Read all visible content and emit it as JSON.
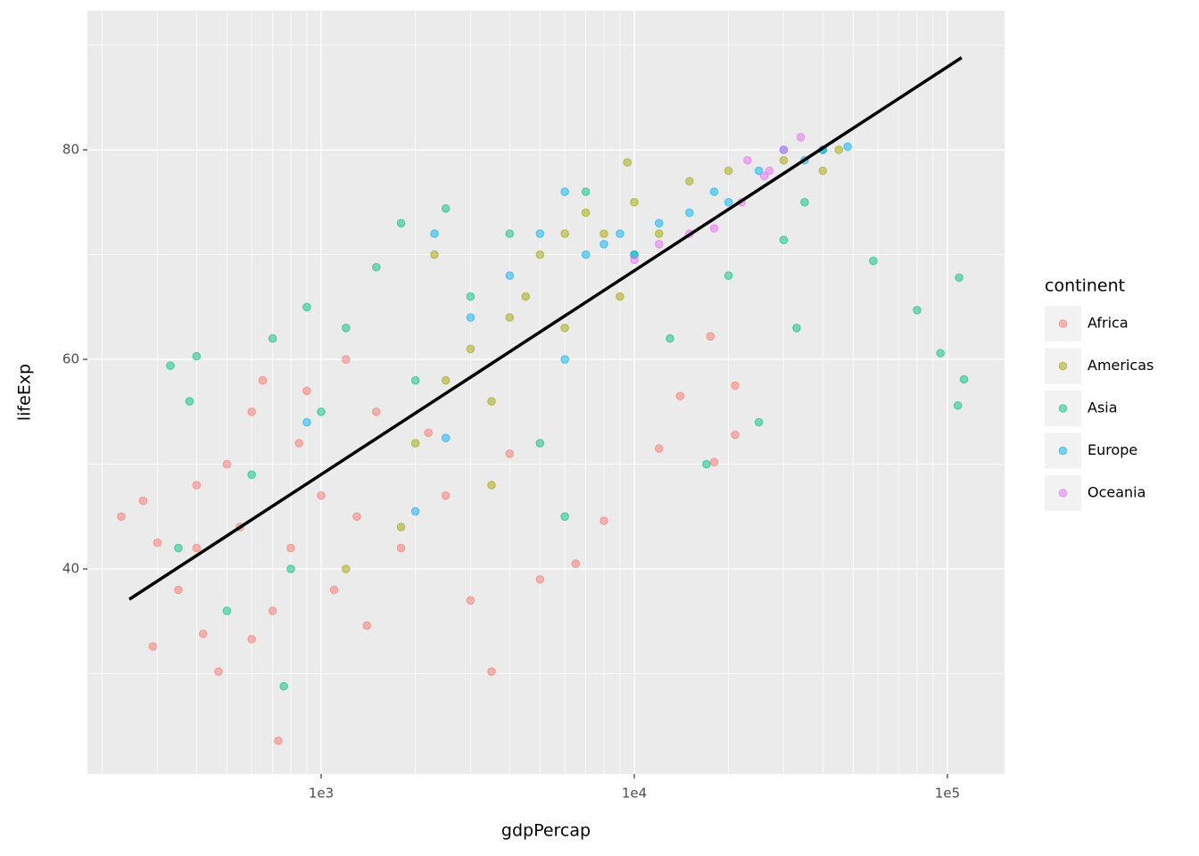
{
  "chart_data": {
    "type": "scatter",
    "x_label": "gdpPercap",
    "y_label": "lifeExp",
    "legend_title": "continent",
    "legend_position": "right",
    "x_log": true,
    "grid": true,
    "xlim": [
      179.3,
      152200
    ],
    "ylim": [
      20.43,
      93.28
    ],
    "xticks": [
      {
        "value": 1000,
        "label": "1e3"
      },
      {
        "value": 10000,
        "label": "1e4"
      },
      {
        "value": 100000,
        "label": "1e5"
      }
    ],
    "yticks": [
      40,
      60,
      80
    ],
    "x_minor_ticks": [
      200,
      300,
      400,
      500,
      600,
      700,
      800,
      900,
      2000,
      3000,
      4000,
      5000,
      6000,
      7000,
      8000,
      9000,
      20000,
      30000,
      40000,
      50000,
      60000,
      70000,
      80000,
      90000
    ],
    "y_minor_ticks": [
      30,
      50,
      70,
      90
    ],
    "series": [
      {
        "name": "Africa",
        "color": "#F8766D",
        "x": [
          230,
          270,
          300,
          290,
          350,
          400,
          420,
          470,
          500,
          550,
          600,
          650,
          700,
          730,
          800,
          850,
          900,
          1000,
          1100,
          1200,
          1300,
          1500,
          1800,
          2200,
          2500,
          3000,
          3500,
          4000,
          5000,
          6500,
          8000,
          12000,
          14000,
          18000,
          21000,
          21000,
          17500,
          600,
          1400,
          400
        ],
        "values": [
          45,
          46.5,
          42.5,
          32.6,
          38,
          48,
          33.8,
          30.2,
          50,
          44,
          55,
          58,
          36,
          23.6,
          42,
          52,
          57,
          47,
          38,
          60,
          45,
          55,
          42,
          53,
          47,
          37,
          30.2,
          51,
          39,
          40.5,
          44.6,
          51.5,
          56.5,
          50.2,
          52.8,
          57.5,
          62.2,
          33.3,
          34.6,
          42
        ]
      },
      {
        "name": "Americas",
        "color": "#A3A500",
        "x": [
          1200,
          1800,
          2000,
          2500,
          3000,
          3500,
          4000,
          4500,
          5000,
          6000,
          7000,
          8000,
          9500,
          10000,
          12000,
          15000,
          20000,
          30000,
          40000,
          45000,
          2300,
          3500,
          6000,
          9000
        ],
        "values": [
          40,
          44,
          52,
          58,
          61,
          56,
          64,
          66,
          70,
          72,
          74,
          72,
          78.8,
          75,
          72,
          77,
          78,
          79,
          78,
          80,
          70,
          48,
          63,
          66
        ]
      },
      {
        "name": "Asia",
        "color": "#00BF7D",
        "x": [
          330,
          380,
          350,
          400,
          500,
          600,
          700,
          760,
          800,
          900,
          1000,
          1200,
          1500,
          1800,
          2000,
          2500,
          3000,
          4000,
          5000,
          6000,
          7000,
          10000,
          13000,
          17000,
          20000,
          25000,
          30000,
          33000,
          35000,
          40000,
          58000,
          80000,
          95000,
          108000,
          109000,
          113000
        ],
        "values": [
          59.4,
          56,
          42,
          60.3,
          36,
          49,
          62,
          28.8,
          40,
          65,
          55,
          63,
          68.8,
          73,
          58,
          74.4,
          66,
          72,
          52,
          45,
          76,
          70,
          62,
          50,
          68,
          54,
          71.4,
          63,
          75,
          80,
          69.4,
          64.7,
          60.6,
          55.6,
          67.8,
          58.1
        ]
      },
      {
        "name": "Europe",
        "color": "#00B0F6",
        "x": [
          900,
          2000,
          2500,
          3000,
          4000,
          5000,
          6000,
          7000,
          8000,
          9000,
          10000,
          12000,
          15000,
          18000,
          20000,
          25000,
          30000,
          35000,
          40000,
          48000,
          2300,
          6000
        ],
        "values": [
          54,
          45.5,
          52.5,
          64,
          68,
          72,
          76,
          70,
          71,
          72,
          70,
          73,
          74,
          76,
          75,
          78,
          80,
          79,
          80,
          80.3,
          72,
          60
        ]
      },
      {
        "name": "Oceania",
        "color": "#E76BF3",
        "x": [
          10000,
          12000,
          15000,
          18000,
          22000,
          26000,
          30000,
          34000,
          23000,
          27000
        ],
        "values": [
          69.5,
          71,
          72,
          72.5,
          75,
          77.5,
          80,
          81.2,
          79,
          78
        ]
      }
    ],
    "fit": {
      "type": "line",
      "color": "#000000",
      "x": [
        244,
        111000
      ],
      "values": [
        37.1,
        88.8
      ]
    }
  }
}
